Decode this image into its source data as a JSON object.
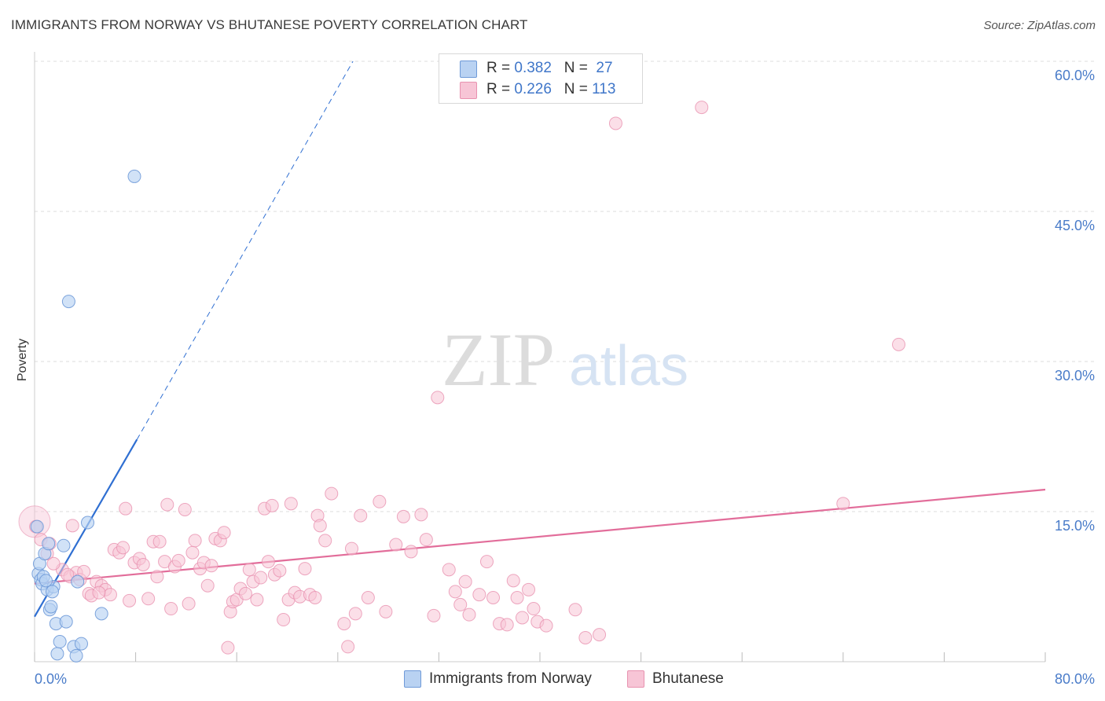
{
  "header": {
    "title": "IMMIGRANTS FROM NORWAY VS BHUTANESE POVERTY CORRELATION CHART",
    "source": "Source: ZipAtlas.com"
  },
  "watermark": {
    "zip": "ZIP",
    "atlas": "atlas"
  },
  "legend": {
    "norway": {
      "r_label": "R = ",
      "r_value": "0.382",
      "n_label": "N = ",
      "n_value": "27"
    },
    "bhutanese": {
      "r_label": "R = ",
      "r_value": "0.226",
      "n_label": "N = ",
      "n_value": "113"
    }
  },
  "bottom_legend": {
    "norway": "Immigrants from Norway",
    "bhutanese": "Bhutanese"
  },
  "colors": {
    "norway_fill": "#b9d2f2",
    "norway_stroke": "#6f9ad8",
    "norway_line": "#2f6fd2",
    "bhutanese_fill": "#f7c5d6",
    "bhutanese_stroke": "#e892b0",
    "bhutanese_line": "#e26d9a",
    "grid": "#dddddd",
    "tick_text": "#4a7cc9"
  },
  "chart_data": {
    "type": "scatter",
    "title": "IMMIGRANTS FROM NORWAY VS BHUTANESE POVERTY CORRELATION CHART",
    "xlabel": "",
    "ylabel": "Poverty",
    "xlim": [
      0,
      80
    ],
    "ylim": [
      0,
      60
    ],
    "x_tick_labels": [
      "0.0%",
      "80.0%"
    ],
    "y_tick_values": [
      15,
      30,
      45,
      60
    ],
    "y_tick_labels": [
      "15.0%",
      "30.0%",
      "45.0%",
      "60.0%"
    ],
    "legend_position": "top-center",
    "series": [
      {
        "name": "Immigrants from Norway",
        "R": 0.382,
        "N": 27,
        "trend": {
          "x0": 0,
          "y0": 4.5,
          "x1": 8.1,
          "y1": 22.2,
          "dashed_to": [
            25.2,
            60
          ]
        },
        "points": [
          [
            0.2,
            13.5
          ],
          [
            0.3,
            8.8
          ],
          [
            0.4,
            9.8
          ],
          [
            0.5,
            8.2
          ],
          [
            0.6,
            7.8
          ],
          [
            0.7,
            8.5
          ],
          [
            0.8,
            10.8
          ],
          [
            1.0,
            7.2
          ],
          [
            1.1,
            11.8
          ],
          [
            1.2,
            5.2
          ],
          [
            1.3,
            5.5
          ],
          [
            1.5,
            7.5
          ],
          [
            1.7,
            3.8
          ],
          [
            1.8,
            0.8
          ],
          [
            2.0,
            2.0
          ],
          [
            2.3,
            11.6
          ],
          [
            2.5,
            4.0
          ],
          [
            2.7,
            36.0
          ],
          [
            3.1,
            1.5
          ],
          [
            3.3,
            0.6
          ],
          [
            3.4,
            8.0
          ],
          [
            3.7,
            1.8
          ],
          [
            4.2,
            13.9
          ],
          [
            5.3,
            4.8
          ],
          [
            7.9,
            48.5
          ],
          [
            1.4,
            7.0
          ],
          [
            0.9,
            8.1
          ]
        ]
      },
      {
        "name": "Bhutanese",
        "R": 0.226,
        "N": 113,
        "trend": {
          "x0": 0,
          "y0": 7.8,
          "x1": 80,
          "y1": 17.2
        },
        "points": [
          [
            0.1,
            13.5
          ],
          [
            0.5,
            12.2
          ],
          [
            1.0,
            10.8
          ],
          [
            1.2,
            11.8
          ],
          [
            2.2,
            9.2
          ],
          [
            2.8,
            8.5
          ],
          [
            3.0,
            13.6
          ],
          [
            3.3,
            8.9
          ],
          [
            3.6,
            8.2
          ],
          [
            3.9,
            9.0
          ],
          [
            4.3,
            6.8
          ],
          [
            4.5,
            6.6
          ],
          [
            4.9,
            8.0
          ],
          [
            5.3,
            7.6
          ],
          [
            5.6,
            7.2
          ],
          [
            6.0,
            6.7
          ],
          [
            6.3,
            11.2
          ],
          [
            6.7,
            10.9
          ],
          [
            7.0,
            11.4
          ],
          [
            7.2,
            15.3
          ],
          [
            7.5,
            6.1
          ],
          [
            7.9,
            9.9
          ],
          [
            8.3,
            10.3
          ],
          [
            8.6,
            9.7
          ],
          [
            9.0,
            6.3
          ],
          [
            9.4,
            12.0
          ],
          [
            9.7,
            8.5
          ],
          [
            9.9,
            12.0
          ],
          [
            10.3,
            10.0
          ],
          [
            10.5,
            15.7
          ],
          [
            10.8,
            5.3
          ],
          [
            11.1,
            9.5
          ],
          [
            11.4,
            10.1
          ],
          [
            11.9,
            15.2
          ],
          [
            12.2,
            5.8
          ],
          [
            12.5,
            10.9
          ],
          [
            12.7,
            12.1
          ],
          [
            13.1,
            9.3
          ],
          [
            13.4,
            9.9
          ],
          [
            13.7,
            7.6
          ],
          [
            14.0,
            9.6
          ],
          [
            14.3,
            12.3
          ],
          [
            14.7,
            12.1
          ],
          [
            15.0,
            12.9
          ],
          [
            15.3,
            1.4
          ],
          [
            15.5,
            5.0
          ],
          [
            15.7,
            6.0
          ],
          [
            16.0,
            6.2
          ],
          [
            16.3,
            7.3
          ],
          [
            16.7,
            6.8
          ],
          [
            17.0,
            9.2
          ],
          [
            17.3,
            8.0
          ],
          [
            17.6,
            6.2
          ],
          [
            17.9,
            8.4
          ],
          [
            18.2,
            15.3
          ],
          [
            18.5,
            10.0
          ],
          [
            18.8,
            15.6
          ],
          [
            19.0,
            8.7
          ],
          [
            19.4,
            9.1
          ],
          [
            19.7,
            4.2
          ],
          [
            20.1,
            6.2
          ],
          [
            20.3,
            15.8
          ],
          [
            20.6,
            6.9
          ],
          [
            21.0,
            6.5
          ],
          [
            21.4,
            9.3
          ],
          [
            21.8,
            6.7
          ],
          [
            22.2,
            6.4
          ],
          [
            22.4,
            14.6
          ],
          [
            22.6,
            13.6
          ],
          [
            23.0,
            12.1
          ],
          [
            23.5,
            16.8
          ],
          [
            24.5,
            3.8
          ],
          [
            24.8,
            1.5
          ],
          [
            25.1,
            11.3
          ],
          [
            25.4,
            4.8
          ],
          [
            25.8,
            14.6
          ],
          [
            26.4,
            6.4
          ],
          [
            27.3,
            16.0
          ],
          [
            27.8,
            5.0
          ],
          [
            28.6,
            11.7
          ],
          [
            29.2,
            14.5
          ],
          [
            29.8,
            11.0
          ],
          [
            30.6,
            14.7
          ],
          [
            31.0,
            12.2
          ],
          [
            31.6,
            4.6
          ],
          [
            31.9,
            26.4
          ],
          [
            32.8,
            9.2
          ],
          [
            33.3,
            7.0
          ],
          [
            33.7,
            5.7
          ],
          [
            34.1,
            8.0
          ],
          [
            34.4,
            4.7
          ],
          [
            35.2,
            6.7
          ],
          [
            35.8,
            10.0
          ],
          [
            36.3,
            6.4
          ],
          [
            36.8,
            3.8
          ],
          [
            37.4,
            3.7
          ],
          [
            37.9,
            8.1
          ],
          [
            38.2,
            6.4
          ],
          [
            38.6,
            4.4
          ],
          [
            39.1,
            7.2
          ],
          [
            39.5,
            5.3
          ],
          [
            39.8,
            4.0
          ],
          [
            40.5,
            3.6
          ],
          [
            42.8,
            5.2
          ],
          [
            43.6,
            2.4
          ],
          [
            44.7,
            2.7
          ],
          [
            46.0,
            53.8
          ],
          [
            52.8,
            55.4
          ],
          [
            64.0,
            15.8
          ],
          [
            68.4,
            31.7
          ],
          [
            1.5,
            9.8
          ],
          [
            2.6,
            8.7
          ],
          [
            5.1,
            6.9
          ]
        ]
      }
    ]
  }
}
